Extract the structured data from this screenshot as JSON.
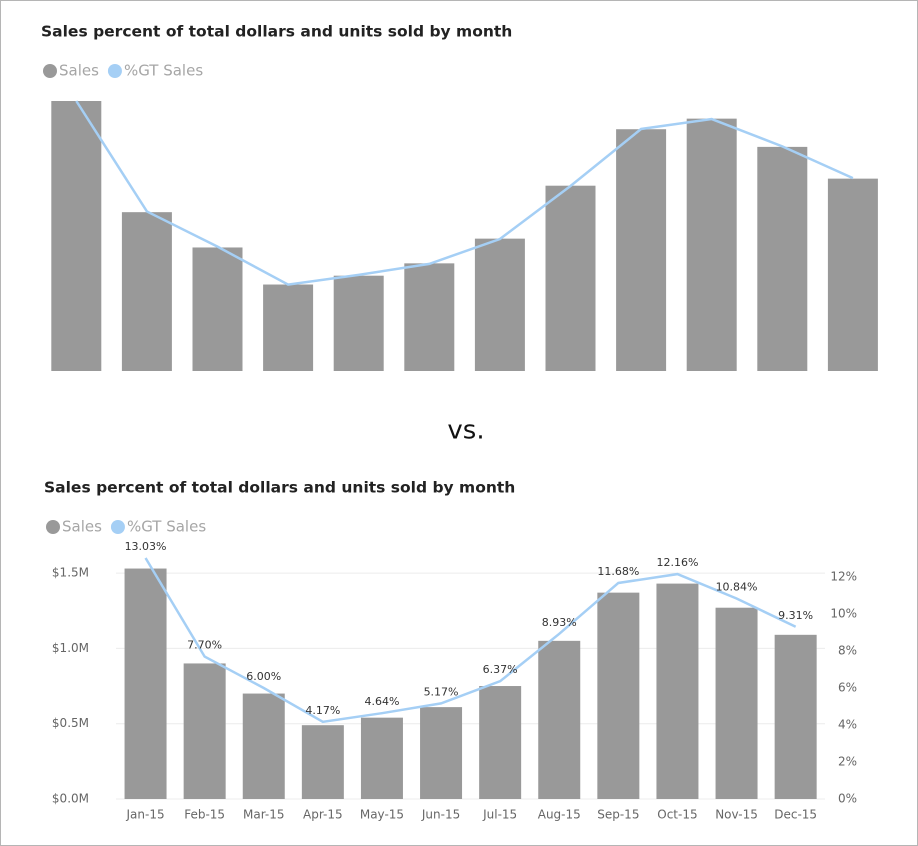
{
  "separator_text": "vs.",
  "chart_data": [
    {
      "type": "combo",
      "title": "Sales percent of total dollars and units sold by month",
      "series": [
        {
          "name": "Sales",
          "type": "bar",
          "color": "#999999",
          "values": [
            1530000,
            900000,
            700000,
            490000,
            540000,
            610000,
            750000,
            1050000,
            1370000,
            1430000,
            1270000,
            1090000
          ]
        },
        {
          "name": "%GT Sales",
          "type": "line",
          "color": "#a5cff5",
          "values": [
            13.03,
            7.7,
            6.0,
            4.17,
            4.64,
            5.17,
            6.37,
            8.93,
            11.68,
            12.16,
            10.84,
            9.31
          ]
        }
      ]
    },
    {
      "type": "combo",
      "title": "Sales percent of total dollars and units sold by month",
      "categories": [
        "Jan-15",
        "Feb-15",
        "Mar-15",
        "Apr-15",
        "May-15",
        "Jun-15",
        "Jul-15",
        "Aug-15",
        "Sep-15",
        "Oct-15",
        "Nov-15",
        "Dec-15"
      ],
      "series": [
        {
          "name": "Sales",
          "type": "bar",
          "color": "#999999",
          "values": [
            1530000,
            900000,
            700000,
            490000,
            540000,
            610000,
            750000,
            1050000,
            1370000,
            1430000,
            1270000,
            1090000
          ]
        },
        {
          "name": "%GT Sales",
          "type": "line",
          "color": "#a5cff5",
          "axis": "y2",
          "values": [
            13.03,
            7.7,
            6.0,
            4.17,
            4.64,
            5.17,
            6.37,
            8.93,
            11.68,
            12.16,
            10.84,
            9.31
          ],
          "value_labels": [
            "13.03%",
            "7.70%",
            "6.00%",
            "4.17%",
            "4.64%",
            "5.17%",
            "6.37%",
            "8.93%",
            "11.68%",
            "12.16%",
            "10.84%",
            "9.31%"
          ]
        }
      ],
      "ylim": [
        0,
        1600000
      ],
      "yticks": [
        {
          "value": 0,
          "label": "$0.0M"
        },
        {
          "value": 500000,
          "label": "$0.5M"
        },
        {
          "value": 1000000,
          "label": "$1.0M"
        },
        {
          "value": 1500000,
          "label": "$1.5M"
        }
      ],
      "y2lim": [
        0,
        13.03
      ],
      "y2ticks": [
        {
          "value": 0,
          "label": "0%"
        },
        {
          "value": 2,
          "label": "2%"
        },
        {
          "value": 4,
          "label": "4%"
        },
        {
          "value": 6,
          "label": "6%"
        },
        {
          "value": 8,
          "label": "8%"
        },
        {
          "value": 10,
          "label": "10%"
        },
        {
          "value": 12,
          "label": "12%"
        }
      ],
      "grid": true
    }
  ]
}
